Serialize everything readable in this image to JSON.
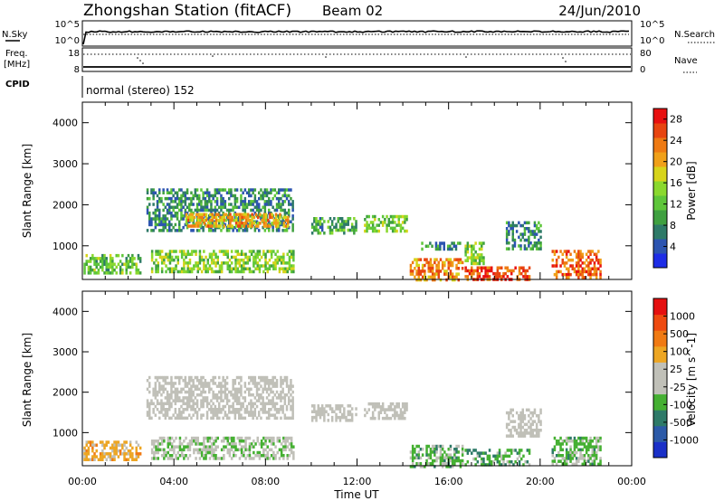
{
  "header": {
    "station": "Zhongshan Station (fitACF)",
    "beam": "Beam 02",
    "date": "24/Jun/2010"
  },
  "status_panels": {
    "nsky_label": "N.Sky",
    "nsky_ticks": [
      "10^5",
      "10^0"
    ],
    "nsearch_label": "N.Search",
    "nsearch_ticks": [
      "10^5",
      "10^0"
    ],
    "freq_label_1": "Freq.",
    "freq_label_2": "[MHz]",
    "freq_ticks": [
      "18",
      "8"
    ],
    "nave_label": "Nave",
    "nave_ticks": [
      "80",
      "0"
    ],
    "cpid_label": "CPID",
    "cpid_text": "normal (stereo) 152"
  },
  "axes": {
    "x_ticks": [
      "00:00",
      "04:00",
      "08:00",
      "12:00",
      "16:00",
      "20:00",
      "00:00"
    ],
    "x_label": "Time UT",
    "y_label": "Slant Range [km]",
    "y_ticks": [
      "1000",
      "2000",
      "3000",
      "4000"
    ]
  },
  "chart_data": [
    {
      "type": "heatmap",
      "title": "",
      "xlabel": "Time UT",
      "ylabel": "Slant Range [km]",
      "xlim": [
        0,
        24
      ],
      "ylim": [
        180,
        4500
      ],
      "colorbar": {
        "label": "Power [dB]",
        "ticks": [
          "4",
          "8",
          "12",
          "16",
          "20",
          "24",
          "28"
        ],
        "range": [
          0,
          30
        ],
        "colors": [
          "#1e2de6",
          "#2c54b0",
          "#2e7a68",
          "#3fa040",
          "#5ec63a",
          "#8ad82e",
          "#d7d41b",
          "#f0a019",
          "#ee7a13",
          "#e84510",
          "#e81010"
        ]
      },
      "regions": [
        {
          "t": [
            0.05,
            2.5
          ],
          "r": [
            350,
            800
          ],
          "value": 12
        },
        {
          "t": [
            2.8,
            9.2
          ],
          "r": [
            1350,
            2400
          ],
          "value": 8
        },
        {
          "t": [
            4.5,
            9.0
          ],
          "r": [
            1450,
            1800
          ],
          "value": 20
        },
        {
          "t": [
            3.0,
            9.2
          ],
          "r": [
            350,
            900
          ],
          "value": 14
        },
        {
          "t": [
            10.0,
            12.0
          ],
          "r": [
            1300,
            1700
          ],
          "value": 10
        },
        {
          "t": [
            12.3,
            14.2
          ],
          "r": [
            1350,
            1750
          ],
          "value": 14
        },
        {
          "t": [
            14.3,
            16.6
          ],
          "r": [
            180,
            700
          ],
          "value": 22
        },
        {
          "t": [
            14.8,
            16.5
          ],
          "r": [
            900,
            1100
          ],
          "value": 8
        },
        {
          "t": [
            16.7,
            19.5
          ],
          "r": [
            180,
            500
          ],
          "value": 26
        },
        {
          "t": [
            16.7,
            17.5
          ],
          "r": [
            600,
            1100
          ],
          "value": 14
        },
        {
          "t": [
            18.5,
            20.0
          ],
          "r": [
            900,
            1600
          ],
          "value": 8
        },
        {
          "t": [
            20.5,
            22.6
          ],
          "r": [
            200,
            900
          ],
          "value": 24
        }
      ]
    },
    {
      "type": "heatmap",
      "title": "",
      "xlabel": "Time UT",
      "ylabel": "Slant Range [km]",
      "xlim": [
        0,
        24
      ],
      "ylim": [
        180,
        4500
      ],
      "colorbar": {
        "label": "Velocity [m s^-1]",
        "ticks": [
          "1000",
          "500",
          "100",
          "25",
          "-25",
          "-100",
          "-500",
          "-1000"
        ],
        "range": [
          -1200,
          1200
        ],
        "colors": [
          "#1a30c8",
          "#2c5aa8",
          "#2e7a68",
          "#45b032",
          "#c0c0b8",
          "#c0c0b8",
          "#eda623",
          "#f07a13",
          "#ee4a10",
          "#e51010"
        ]
      },
      "regions": [
        {
          "t": [
            0.05,
            2.5
          ],
          "r": [
            350,
            800
          ],
          "value": 300
        },
        {
          "t": [
            2.8,
            9.2
          ],
          "r": [
            1350,
            2400
          ],
          "value": 0
        },
        {
          "t": [
            3.0,
            9.2
          ],
          "r": [
            350,
            900
          ],
          "value": -150
        },
        {
          "t": [
            10.0,
            12.0
          ],
          "r": [
            1300,
            1700
          ],
          "value": 0
        },
        {
          "t": [
            12.3,
            14.2
          ],
          "r": [
            1350,
            1750
          ],
          "value": 0
        },
        {
          "t": [
            14.3,
            16.6
          ],
          "r": [
            180,
            700
          ],
          "value": -300
        },
        {
          "t": [
            16.7,
            19.5
          ],
          "r": [
            180,
            600
          ],
          "value": -400
        },
        {
          "t": [
            18.5,
            20.0
          ],
          "r": [
            900,
            1600
          ],
          "value": 0
        },
        {
          "t": [
            20.5,
            22.6
          ],
          "r": [
            200,
            900
          ],
          "value": -300
        }
      ]
    }
  ]
}
